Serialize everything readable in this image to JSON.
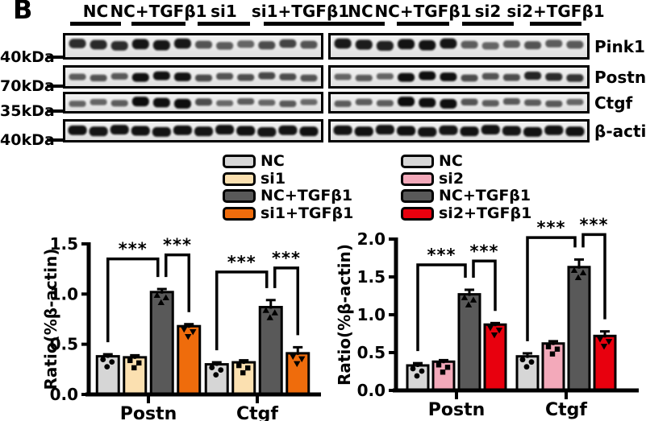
{
  "panel_label": "B",
  "lane_group_labels": [
    "NC",
    "NC+TGFβ1",
    "si1",
    "si1+TGFβ1",
    "NC",
    "NC+TGFβ1",
    "si2",
    "si2+TGFβ1"
  ],
  "blot_rows": [
    {
      "protein": "Pink1",
      "mw": "40kDa",
      "left": [
        0.8,
        0.82,
        0.8,
        0.95,
        0.95,
        0.93,
        0.55,
        0.5,
        0.45,
        0.6,
        0.65,
        0.55
      ],
      "right": [
        0.92,
        0.9,
        0.88,
        0.96,
        0.96,
        0.94,
        0.5,
        0.45,
        0.48,
        0.55,
        0.5,
        0.52
      ]
    },
    {
      "protein": "Postn",
      "mw": "70kDa",
      "left": [
        0.5,
        0.55,
        0.52,
        0.97,
        0.97,
        0.96,
        0.6,
        0.55,
        0.58,
        0.62,
        0.6,
        0.56
      ],
      "right": [
        0.45,
        0.5,
        0.45,
        0.97,
        0.98,
        0.97,
        0.6,
        0.55,
        0.6,
        0.85,
        0.8,
        0.75
      ]
    },
    {
      "protein": "Ctgf",
      "mw": "35kDa",
      "left": [
        0.45,
        0.45,
        0.5,
        1.0,
        0.98,
        1.0,
        0.6,
        0.42,
        0.5,
        0.45,
        0.52,
        0.42
      ],
      "right": [
        0.5,
        0.5,
        0.48,
        1.0,
        0.98,
        0.99,
        0.55,
        0.5,
        0.52,
        0.5,
        0.52,
        0.45
      ]
    },
    {
      "protein": "β-actin",
      "mw": "40kDa",
      "left": [
        0.97,
        0.95,
        0.96,
        0.97,
        0.96,
        0.97,
        0.95,
        0.96,
        0.97,
        0.95,
        0.96,
        0.97
      ],
      "right": [
        0.96,
        0.97,
        0.95,
        0.97,
        0.96,
        0.95,
        0.97,
        0.96,
        0.95,
        0.97,
        0.96,
        0.97
      ]
    }
  ],
  "legends": [
    {
      "items": [
        {
          "label": "NC",
          "color": "#d6d6d6"
        },
        {
          "label": "si1",
          "color": "#fbe0b0"
        },
        {
          "label": "NC+TGFβ1",
          "color": "#595959"
        },
        {
          "label": "si1+TGFβ1",
          "color": "#ef6c0c"
        }
      ]
    },
    {
      "items": [
        {
          "label": "NC",
          "color": "#d6d6d6"
        },
        {
          "label": "si2",
          "color": "#f3a9ba"
        },
        {
          "label": "NC+TGFβ1",
          "color": "#595959"
        },
        {
          "label": "si2+TGFβ1",
          "color": "#e8000e"
        }
      ]
    }
  ],
  "chart_data": [
    {
      "type": "bar",
      "title": "",
      "ylabel": "Ratio(%β-actin)",
      "xlabel": "",
      "ylim": [
        0,
        1.5
      ],
      "yticks": [
        0.0,
        0.5,
        1.0,
        1.5
      ],
      "categories": [
        "Postn",
        "Ctgf"
      ],
      "grid": false,
      "legend_position": "above",
      "series": [
        {
          "name": "NC",
          "color": "#d6d6d6",
          "marker": "circle",
          "values": [
            0.38,
            0.3
          ],
          "errors": [
            0.02,
            0.02
          ]
        },
        {
          "name": "si1",
          "color": "#fbe0b0",
          "marker": "square",
          "values": [
            0.37,
            0.32
          ],
          "errors": [
            0.02,
            0.02
          ]
        },
        {
          "name": "NC+TGFβ1",
          "color": "#595959",
          "marker": "triangle-up",
          "values": [
            1.02,
            0.87
          ],
          "errors": [
            0.03,
            0.07
          ]
        },
        {
          "name": "si1+TGFβ1",
          "color": "#ef6c0c",
          "marker": "triangle-down",
          "values": [
            0.68,
            0.41
          ],
          "errors": [
            0.02,
            0.06
          ]
        }
      ],
      "significance": [
        {
          "group": "Postn",
          "bar1": "NC",
          "bar2": "NC+TGFβ1",
          "y": 1.35,
          "label": "***"
        },
        {
          "group": "Postn",
          "bar1": "NC+TGFβ1",
          "bar2": "si1+TGFβ1",
          "y": 1.39,
          "label": "***"
        },
        {
          "group": "Ctgf",
          "bar1": "NC",
          "bar2": "NC+TGFβ1",
          "y": 1.22,
          "label": "***"
        },
        {
          "group": "Ctgf",
          "bar1": "NC+TGFβ1",
          "bar2": "si1+TGFβ1",
          "y": 1.26,
          "label": "***"
        }
      ]
    },
    {
      "type": "bar",
      "title": "",
      "ylabel": "Ratio(%β-actin)",
      "xlabel": "",
      "ylim": [
        0,
        2.0
      ],
      "yticks": [
        0.0,
        0.5,
        1.0,
        1.5,
        2.0
      ],
      "categories": [
        "Postn",
        "Ctgf"
      ],
      "grid": false,
      "legend_position": "above",
      "series": [
        {
          "name": "NC",
          "color": "#d6d6d6",
          "marker": "circle",
          "values": [
            0.33,
            0.45
          ],
          "errors": [
            0.03,
            0.04
          ]
        },
        {
          "name": "si2",
          "color": "#f3a9ba",
          "marker": "square",
          "values": [
            0.38,
            0.62
          ],
          "errors": [
            0.02,
            0.03
          ]
        },
        {
          "name": "NC+TGFβ1",
          "color": "#595959",
          "marker": "triangle-up",
          "values": [
            1.27,
            1.63
          ],
          "errors": [
            0.06,
            0.1
          ]
        },
        {
          "name": "si2+TGFβ1",
          "color": "#e8000e",
          "marker": "triangle-down",
          "values": [
            0.87,
            0.72
          ],
          "errors": [
            0.02,
            0.06
          ]
        }
      ],
      "significance": [
        {
          "group": "Postn",
          "bar1": "NC",
          "bar2": "NC+TGFβ1",
          "y": 1.66,
          "label": "***"
        },
        {
          "group": "Postn",
          "bar1": "NC+TGFβ1",
          "bar2": "si2+TGFβ1",
          "y": 1.71,
          "label": "***"
        },
        {
          "group": "Ctgf",
          "bar1": "NC",
          "bar2": "NC+TGFβ1",
          "y": 2.02,
          "label": "***"
        },
        {
          "group": "Ctgf",
          "bar1": "NC+TGFβ1",
          "bar2": "si2+TGFβ1",
          "y": 2.06,
          "label": "***"
        }
      ]
    }
  ]
}
